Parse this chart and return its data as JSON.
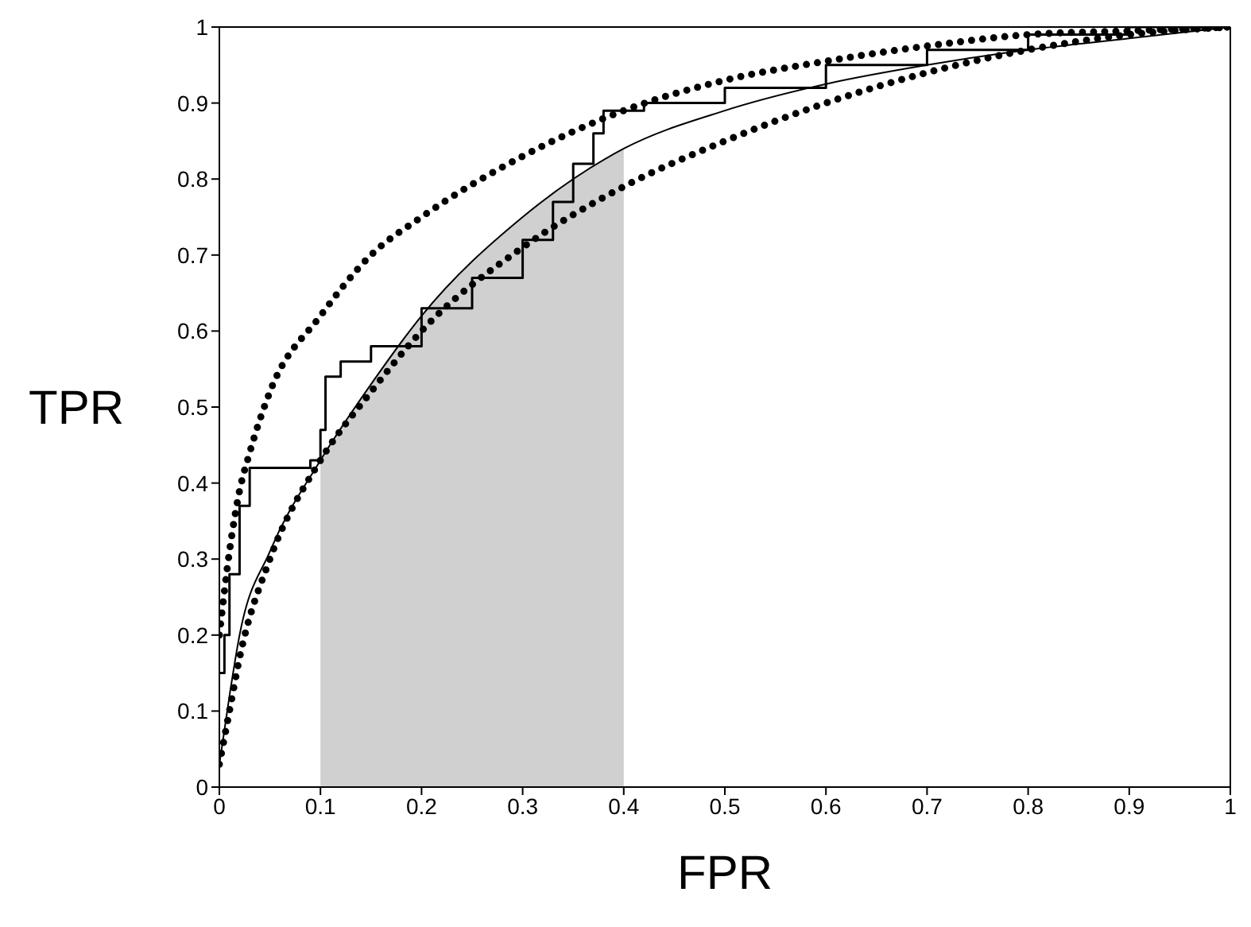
{
  "chart_data": {
    "type": "line",
    "xlabel": "FPR",
    "ylabel": "TPR",
    "xlim": [
      0,
      1
    ],
    "ylim": [
      0,
      1
    ],
    "xticks": [
      0,
      0.1,
      0.2,
      0.3,
      0.4,
      0.5,
      0.6,
      0.7,
      0.8,
      0.9,
      1
    ],
    "yticks": [
      0,
      0.1,
      0.2,
      0.3,
      0.4,
      0.5,
      0.6,
      0.7,
      0.8,
      0.9,
      1
    ],
    "grid": false,
    "legend": false,
    "series": [
      {
        "type": "area",
        "color": "#d0d0d0",
        "x": [
          0.1,
          0.15,
          0.2,
          0.25,
          0.3,
          0.35,
          0.4
        ],
        "values": [
          0.43,
          0.53,
          0.62,
          0.69,
          0.75,
          0.8,
          0.84
        ]
      },
      {
        "type": "line",
        "color": "#000000",
        "line_style": "dotted",
        "x": [
          0,
          0.01,
          0.02,
          0.03,
          0.05,
          0.1,
          0.15,
          0.2,
          0.3,
          0.4,
          0.5,
          0.6,
          0.7,
          0.8,
          0.9,
          1
        ],
        "values": [
          0.2,
          0.31,
          0.39,
          0.44,
          0.52,
          0.62,
          0.7,
          0.75,
          0.83,
          0.89,
          0.93,
          0.955,
          0.975,
          0.99,
          0.995,
          1
        ]
      },
      {
        "type": "line",
        "color": "#000000",
        "line_style": "dotted",
        "x": [
          0,
          0.01,
          0.02,
          0.05,
          0.1,
          0.15,
          0.2,
          0.3,
          0.4,
          0.5,
          0.6,
          0.7,
          0.8,
          0.9,
          1
        ],
        "values": [
          0.03,
          0.1,
          0.17,
          0.3,
          0.43,
          0.52,
          0.6,
          0.71,
          0.79,
          0.85,
          0.9,
          0.94,
          0.97,
          0.99,
          1
        ]
      },
      {
        "type": "line",
        "color": "#000000",
        "line_style": "solid",
        "x": [
          0,
          0.01,
          0.02,
          0.05,
          0.1,
          0.15,
          0.2,
          0.3,
          0.4,
          0.5,
          0.6,
          0.7,
          0.8,
          0.9,
          1
        ],
        "values": [
          0.03,
          0.12,
          0.2,
          0.31,
          0.43,
          0.53,
          0.62,
          0.75,
          0.84,
          0.89,
          0.925,
          0.95,
          0.97,
          0.985,
          1
        ]
      },
      {
        "type": "step",
        "color": "#000000",
        "line_style": "solid",
        "x": [
          0,
          0.005,
          0.01,
          0.02,
          0.03,
          0.09,
          0.1,
          0.105,
          0.12,
          0.15,
          0.2,
          0.25,
          0.3,
          0.33,
          0.35,
          0.37,
          0.38,
          0.42,
          0.5,
          0.6,
          0.7,
          0.8,
          0.9,
          1
        ],
        "values": [
          0.15,
          0.2,
          0.28,
          0.37,
          0.42,
          0.43,
          0.47,
          0.54,
          0.56,
          0.58,
          0.63,
          0.67,
          0.72,
          0.77,
          0.82,
          0.86,
          0.89,
          0.9,
          0.92,
          0.95,
          0.97,
          0.99,
          1,
          1
        ]
      }
    ]
  }
}
